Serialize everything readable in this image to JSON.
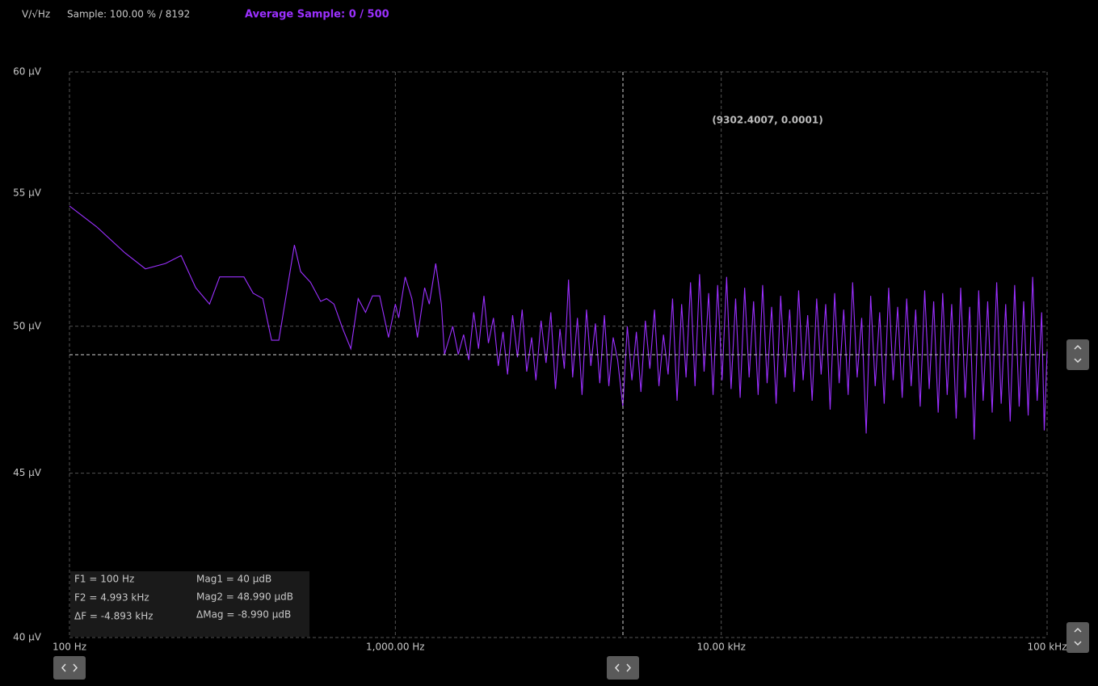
{
  "header": {
    "unit": "V/√Hz",
    "sample": "Sample: 100.00 % / 8192",
    "average": "Average Sample: 0 / 500"
  },
  "chart_data": {
    "type": "line",
    "x_scale": "log",
    "y_scale": "log",
    "color": "#9b30ff",
    "grid": true,
    "annotation": "(9302.4007, 0.0001)",
    "xlim": [
      100,
      100000
    ],
    "xticks": [
      {
        "value": 100,
        "label": "100 Hz"
      },
      {
        "value": 1000,
        "label": "1,000.00 Hz"
      },
      {
        "value": 10000,
        "label": "10.00 kHz"
      },
      {
        "value": 100000,
        "label": "100 kHz"
      }
    ],
    "ylim": [
      40,
      60
    ],
    "yticks": [
      {
        "value": 40,
        "label": "40 µV"
      },
      {
        "value": 45,
        "label": "45 µV"
      },
      {
        "value": 50,
        "label": "50 µV"
      },
      {
        "value": 55,
        "label": "55 µV"
      },
      {
        "value": 60,
        "label": "60 µV"
      }
    ],
    "cursor_x": 4993,
    "cursor_y": 48.99,
    "x": [
      100,
      121,
      148,
      171,
      197,
      220,
      244,
      269,
      289,
      312,
      343,
      366,
      392,
      417,
      439,
      490,
      512,
      549,
      590,
      615,
      648,
      690,
      730,
      769,
      810,
      851,
      895,
      953,
      1000,
      1024,
      1072,
      1124,
      1169,
      1230,
      1271,
      1330,
      1384,
      1415,
      1500,
      1560,
      1620,
      1680,
      1740,
      1800,
      1870,
      1930,
      2000,
      2070,
      2140,
      2210,
      2290,
      2370,
      2450,
      2530,
      2620,
      2700,
      2800,
      2900,
      3000,
      3100,
      3200,
      3300,
      3400,
      3500,
      3620,
      3740,
      3860,
      3980,
      4110,
      4240,
      4380,
      4520,
      4660,
      4810,
      4990,
      5150,
      5320,
      5490,
      5670,
      5850,
      6040,
      6240,
      6440,
      6650,
      6870,
      7090,
      7320,
      7560,
      7800,
      8050,
      8310,
      8580,
      8860,
      9150,
      9440,
      9750,
      10060,
      10390,
      10720,
      11070,
      11430,
      11800,
      12180,
      12570,
      12980,
      13400,
      13830,
      14280,
      14740,
      15220,
      15710,
      16220,
      16740,
      17280,
      17840,
      18420,
      19010,
      19630,
      20260,
      20920,
      21590,
      22290,
      23010,
      23760,
      24520,
      25310,
      26130,
      26980,
      27850,
      28750,
      29680,
      30640,
      31630,
      32650,
      33700,
      34790,
      35920,
      37080,
      38270,
      39510,
      40790,
      42110,
      43470,
      44870,
      46320,
      47820,
      49360,
      50960,
      52600,
      54300,
      56060,
      57870,
      59740,
      61670,
      63660,
      65720,
      67840,
      70030,
      72290,
      74630,
      77040,
      79520,
      82090,
      84750,
      87490,
      90310,
      93230,
      96240,
      98000,
      100000
    ],
    "values": [
      54.5,
      53.7,
      52.7,
      52.1,
      52.3,
      52.6,
      51.4,
      50.8,
      51.8,
      51.8,
      51.8,
      51.2,
      51.0,
      49.5,
      49.5,
      53.0,
      52.0,
      51.6,
      50.9,
      51.0,
      50.8,
      49.9,
      49.2,
      51.0,
      50.5,
      51.1,
      51.1,
      49.6,
      50.8,
      50.3,
      51.8,
      51.0,
      49.6,
      51.4,
      50.8,
      52.3,
      50.8,
      49.0,
      50.0,
      49.0,
      49.7,
      48.8,
      50.5,
      49.2,
      51.1,
      49.4,
      50.3,
      48.6,
      49.8,
      48.3,
      50.4,
      48.9,
      50.6,
      48.4,
      49.6,
      48.1,
      50.2,
      48.7,
      50.5,
      47.8,
      49.9,
      48.5,
      51.7,
      48.2,
      50.3,
      47.6,
      50.6,
      48.6,
      50.1,
      48.0,
      50.4,
      47.9,
      49.6,
      48.8,
      47.2,
      50.0,
      48.1,
      49.8,
      47.7,
      50.2,
      48.5,
      50.6,
      47.9,
      49.7,
      48.3,
      51.0,
      47.4,
      50.8,
      48.2,
      51.6,
      47.9,
      51.9,
      48.4,
      51.2,
      47.6,
      51.5,
      48.1,
      51.8,
      47.8,
      51.0,
      47.5,
      51.4,
      48.2,
      50.9,
      47.6,
      51.5,
      48.0,
      50.7,
      47.3,
      51.1,
      48.2,
      50.6,
      47.7,
      51.3,
      48.1,
      50.4,
      47.4,
      51.0,
      48.3,
      50.8,
      47.1,
      51.2,
      48.0,
      50.6,
      47.6,
      51.6,
      48.2,
      50.3,
      46.3,
      51.1,
      47.9,
      50.5,
      47.3,
      51.4,
      48.1,
      50.7,
      47.5,
      51.0,
      47.9,
      50.6,
      47.2,
      51.3,
      47.8,
      50.9,
      47.0,
      51.2,
      47.6,
      50.8,
      46.8,
      51.4,
      47.5,
      50.7,
      46.1,
      51.3,
      47.4,
      50.9,
      47.0,
      51.6,
      47.3,
      50.8,
      46.7,
      51.5,
      47.2,
      50.9,
      46.9,
      51.8,
      47.4,
      50.5,
      46.4,
      49.1
    ]
  },
  "readout": {
    "left": [
      "F1 =  100 Hz",
      "F2 =  4.993 kHz",
      "ΔF =  -4.893 kHz"
    ],
    "right": [
      "Mag1 =  40 µdB",
      "Mag2 =  48.990 µdB",
      "ΔMag =  -8.990 µdB"
    ]
  }
}
